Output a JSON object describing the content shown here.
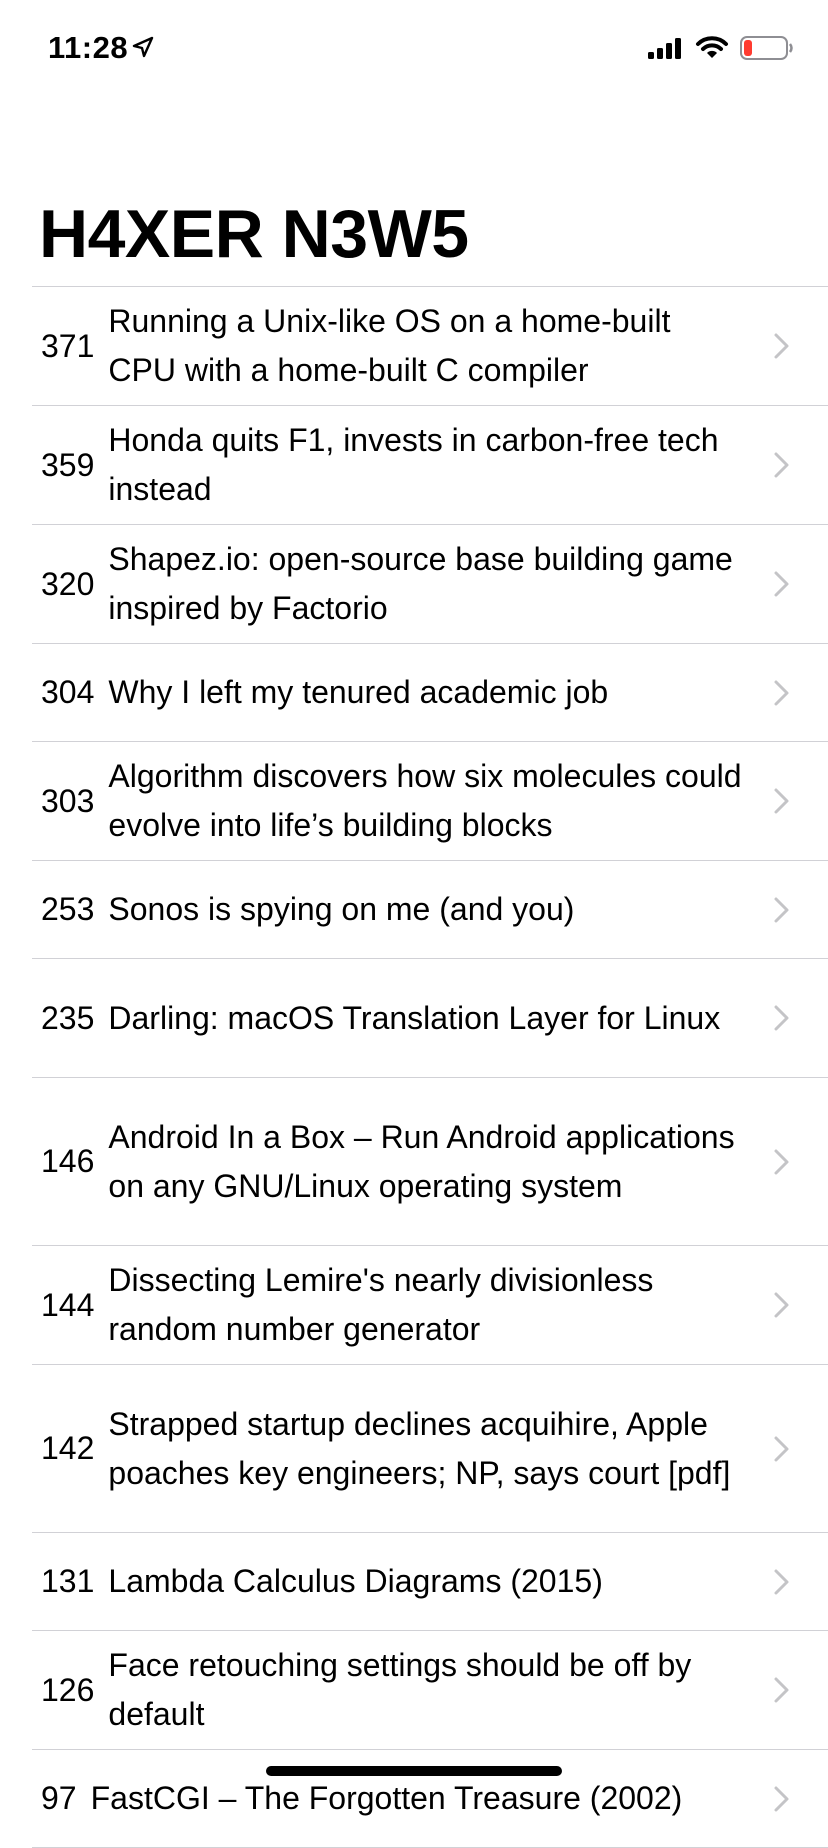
{
  "status_bar": {
    "time": "11:28"
  },
  "nav": {
    "large_title": "H4XER N3W5"
  },
  "stories": [
    {
      "points": "371",
      "title": "Running a Unix-like OS on a home-built CPU with a home-built C compiler"
    },
    {
      "points": "359",
      "title": "Honda quits F1, invests in carbon-free tech instead"
    },
    {
      "points": "320",
      "title": "Shapez.io: open-source base building game inspired by Factorio"
    },
    {
      "points": "304",
      "title": "Why I left my tenured academic job"
    },
    {
      "points": "303",
      "title": "Algorithm discovers how six molecules could evolve into life’s building blocks"
    },
    {
      "points": "253",
      "title": "Sonos is spying on me (and you)"
    },
    {
      "points": "235",
      "title": "Darling: macOS Translation Layer for Linux"
    },
    {
      "points": "146",
      "title": "Android In a Box – Run Android applications on any GNU/Linux operating system"
    },
    {
      "points": "144",
      "title": "Dissecting Lemire's nearly divisionless random number generator"
    },
    {
      "points": "142",
      "title": "Strapped startup declines acquihire, Apple poaches key engineers; NP, says court [pdf]"
    },
    {
      "points": "131",
      "title": "Lambda Calculus Diagrams (2015)"
    },
    {
      "points": "126",
      "title": "Face retouching settings should be off by default"
    },
    {
      "points": "97",
      "title": "FastCGI – The Forgotten Treasure (2002)"
    }
  ],
  "icons": {
    "location": "location-arrow-icon",
    "signal": "cellular-signal-icon",
    "wifi": "wifi-icon",
    "battery": "battery-low-icon",
    "disclosure": "chevron-right-icon"
  },
  "colors": {
    "battery_low": "#ff3b30",
    "chevron": "#c4c4c7",
    "separator": "#d1d1d6"
  }
}
